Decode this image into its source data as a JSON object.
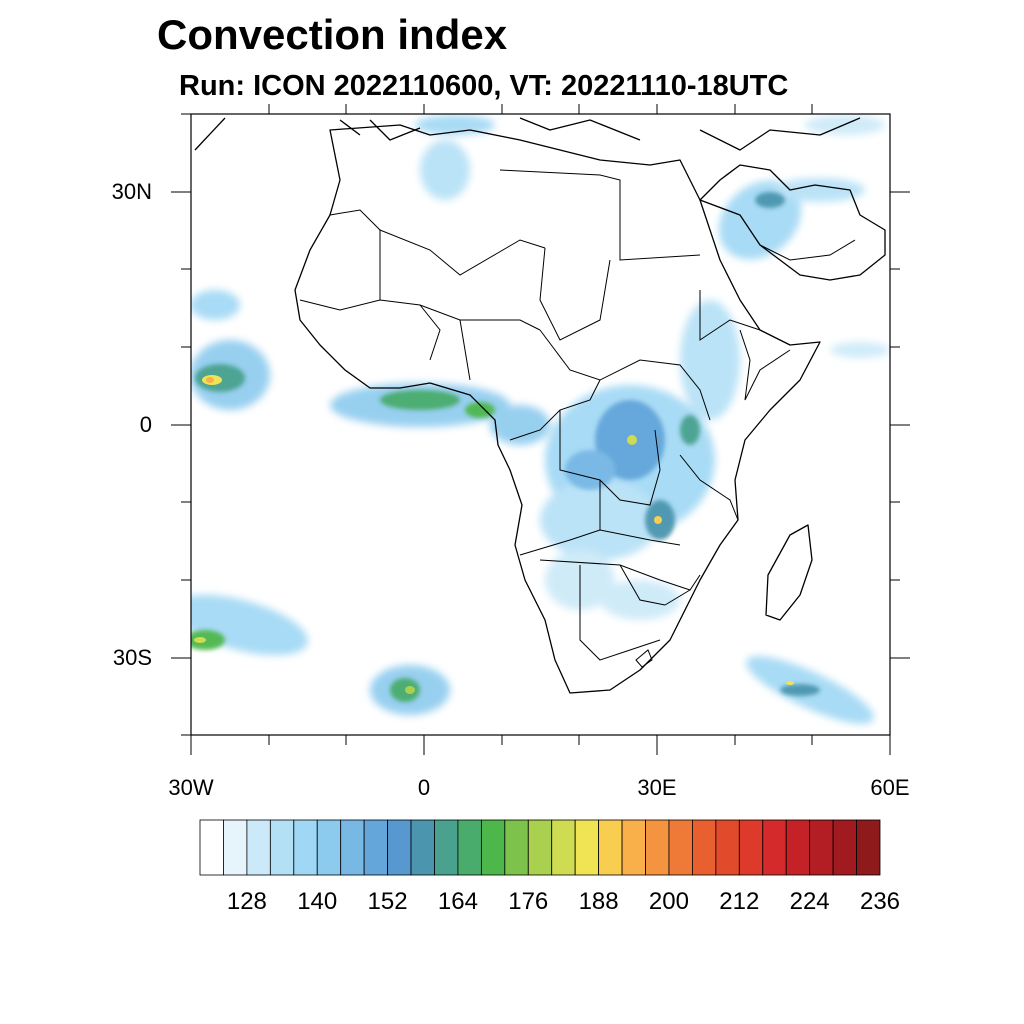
{
  "title": "Convection index",
  "subtitle": "Run: ICON 2022110600,  VT: 20221110-18UTC",
  "map": {
    "lat_labels": [
      "30N",
      "0",
      "30S"
    ],
    "lon_labels": [
      "30W",
      "0",
      "30E",
      "60E"
    ]
  },
  "colorbar": {
    "colors": [
      "#ffffff",
      "#e6f4fc",
      "#cbe9f8",
      "#b4e0f6",
      "#9fd7f4",
      "#8ccaee",
      "#78b8e5",
      "#64a6da",
      "#5698cf",
      "#4c95ae",
      "#4aa28e",
      "#4aac6c",
      "#4eb74c",
      "#7dc24b",
      "#a9d04e",
      "#cfdc52",
      "#f0e354",
      "#f9cd50",
      "#f9b04a",
      "#f59440",
      "#ef7a38",
      "#e86030",
      "#e24a2c",
      "#dd3a2c",
      "#d42a2c",
      "#c52228",
      "#b31d24",
      "#a01a20",
      "#8e1a1c"
    ],
    "tick_labels": [
      "128",
      "140",
      "152",
      "164",
      "176",
      "188",
      "200",
      "212",
      "224",
      "236"
    ]
  }
}
